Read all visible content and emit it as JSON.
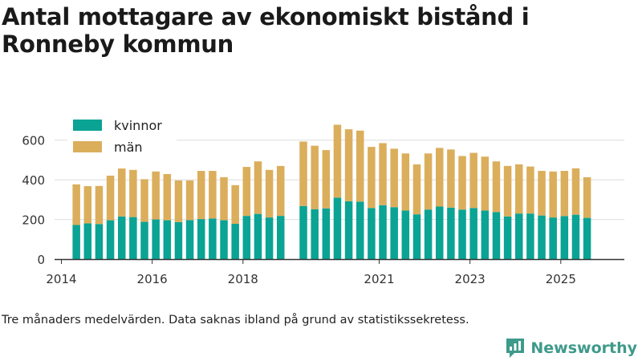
{
  "title": "Antal mottagare av ekonomiskt bistånd i Ronneby kommun",
  "footnote": "Tre månaders medelvärden. Data saknas ibland på grund av statistikssekretess.",
  "brand": "Newsworthy",
  "colors": {
    "kvinnor": "#0aa394",
    "man": "#dbae5c",
    "grid": "#dddddd",
    "axis": "#333333",
    "brand": "#3e9a8a"
  },
  "chart_data": {
    "type": "bar",
    "stacked": true,
    "title": "Antal mottagare av ekonomiskt bistånd i Ronneby kommun",
    "xlabel": "",
    "ylabel": "",
    "ylim": [
      0,
      700
    ],
    "xlim": [
      2013.85,
      2026.4
    ],
    "yticks": [
      0,
      200,
      400,
      600
    ],
    "xticks": [
      {
        "value": 2014,
        "label": "2014"
      },
      {
        "value": 2016,
        "label": "2016"
      },
      {
        "value": 2018,
        "label": "2018"
      },
      {
        "value": 2021,
        "label": "2021"
      },
      {
        "value": 2023,
        "label": "2023"
      },
      {
        "value": 2025,
        "label": "2025"
      }
    ],
    "grid": true,
    "legend": "top-left",
    "x": [
      2014.33,
      2014.58,
      2014.83,
      2015.08,
      2015.33,
      2015.58,
      2015.83,
      2016.08,
      2016.33,
      2016.58,
      2016.83,
      2017.08,
      2017.33,
      2017.58,
      2017.83,
      2018.08,
      2018.33,
      2018.58,
      2018.83,
      2019.33,
      2019.58,
      2019.83,
      2020.08,
      2020.33,
      2020.58,
      2020.83,
      2021.08,
      2021.33,
      2021.58,
      2021.83,
      2022.08,
      2022.33,
      2022.58,
      2022.83,
      2023.08,
      2023.33,
      2023.58,
      2023.83,
      2024.08,
      2024.33,
      2024.58,
      2024.83,
      2025.08,
      2025.33,
      2025.58
    ],
    "series": [
      {
        "name": "kvinnor",
        "values": [
          172,
          180,
          177,
          196,
          215,
          212,
          188,
          200,
          196,
          187,
          197,
          202,
          205,
          196,
          178,
          218,
          228,
          210,
          218,
          268,
          252,
          256,
          310,
          292,
          290,
          258,
          272,
          262,
          245,
          226,
          250,
          265,
          260,
          250,
          258,
          245,
          237,
          215,
          230,
          230,
          220,
          210,
          217,
          224,
          208
        ]
      },
      {
        "name": "män",
        "values": [
          205,
          188,
          192,
          225,
          242,
          238,
          215,
          242,
          233,
          210,
          200,
          243,
          240,
          217,
          195,
          247,
          265,
          240,
          252,
          325,
          320,
          294,
          368,
          363,
          358,
          308,
          313,
          295,
          288,
          252,
          283,
          296,
          293,
          270,
          278,
          272,
          256,
          255,
          248,
          237,
          225,
          232,
          228,
          234,
          205
        ]
      }
    ]
  }
}
